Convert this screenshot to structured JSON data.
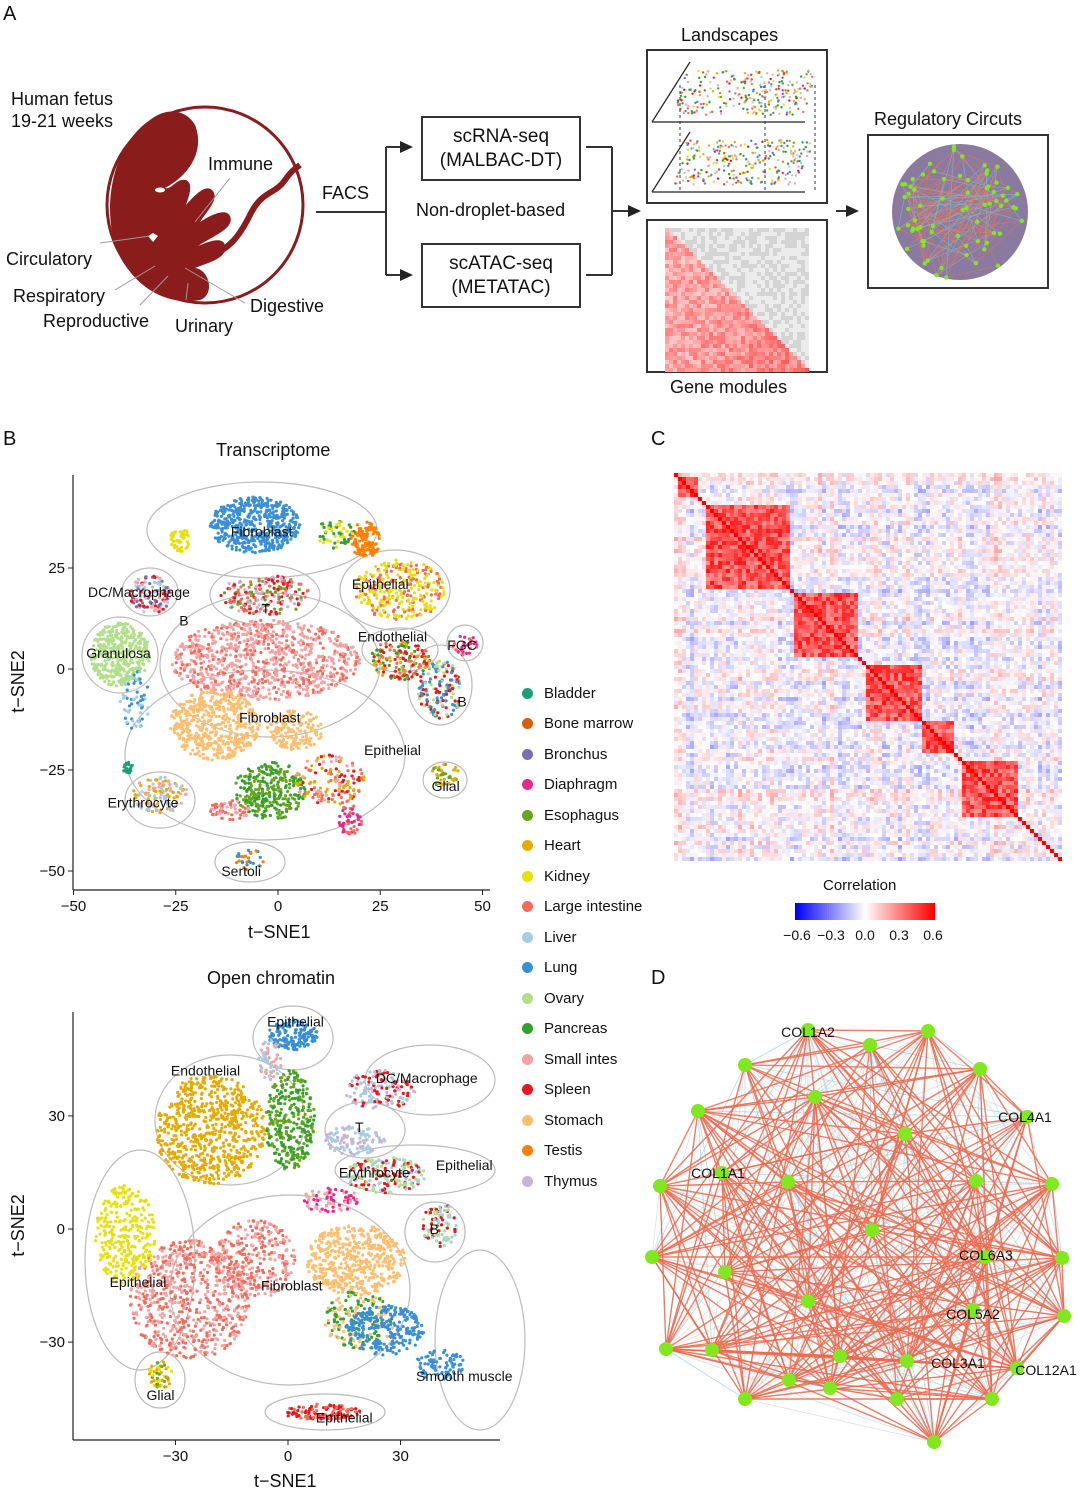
{
  "panel_a": {
    "label": "A",
    "fetus_title_line1": "Human fetus",
    "fetus_title_line2": "19-21 weeks",
    "organs": [
      "Immune",
      "Circulatory",
      "Respiratory",
      "Reproductive",
      "Urinary",
      "Digestive"
    ],
    "facs": "FACS",
    "method_note": "Non-droplet-based",
    "scrna_line1": "scRNA-seq",
    "scrna_line2": "(MALBAC-DT)",
    "scatac_line1": "scATAC-seq",
    "scatac_line2": "(METATAC)",
    "landscapes": "Landscapes",
    "gene_modules": "Gene modules",
    "regulatory": "Regulatory Circuts",
    "fetus_color": "#8b1c1c"
  },
  "panel_b": {
    "label": "B"
  },
  "panel_c": {
    "label": "C"
  },
  "panel_d": {
    "label": "D"
  },
  "legend": [
    {
      "name": "Bladder",
      "color": "#1b9e77"
    },
    {
      "name": "Bone marrow",
      "color": "#d95f02"
    },
    {
      "name": "Bronchus",
      "color": "#7570b3"
    },
    {
      "name": "Diaphragm",
      "color": "#e7298a"
    },
    {
      "name": "Esophagus",
      "color": "#66a61e"
    },
    {
      "name": "Heart",
      "color": "#e6ab02"
    },
    {
      "name": "Kidney",
      "color": "#e8e00c"
    },
    {
      "name": "Large intestine",
      "color": "#f26b5b"
    },
    {
      "name": "Liver",
      "color": "#a6cee3"
    },
    {
      "name": "Lung",
      "color": "#3a8fd6"
    },
    {
      "name": "Ovary",
      "color": "#b2df8a"
    },
    {
      "name": "Pancreas",
      "color": "#33a02c"
    },
    {
      "name": "Small intes",
      "color": "#f4a3a3"
    },
    {
      "name": "Spleen",
      "color": "#e31a1c"
    },
    {
      "name": "Stomach",
      "color": "#fdbf6f"
    },
    {
      "name": "Testis",
      "color": "#ff7f00"
    },
    {
      "name": "Thymus",
      "color": "#cab2d6"
    }
  ],
  "chart_data": [
    {
      "type": "scatter",
      "title": "Transcriptome",
      "xlabel": "t−SNE1",
      "ylabel": "t−SNE2",
      "xlim": [
        -50,
        50
      ],
      "ylim": [
        -50,
        50
      ],
      "xticks": [
        "−50",
        "−25",
        "0",
        "25",
        "50"
      ],
      "yticks": [
        "25",
        "0",
        "−25",
        "−50"
      ],
      "grid": false,
      "legend": "right",
      "annotations": [
        {
          "label": "Fibroblast",
          "x": -4,
          "y": 34
        },
        {
          "label": "DC/Macrophage",
          "x": -34,
          "y": 19
        },
        {
          "label": "T",
          "x": -3,
          "y": 15
        },
        {
          "label": "B",
          "x": -23,
          "y": 12
        },
        {
          "label": "Epithelial",
          "x": 25,
          "y": 21
        },
        {
          "label": "Endothelial",
          "x": 28,
          "y": 8
        },
        {
          "label": "FGC",
          "x": 45,
          "y": 6
        },
        {
          "label": "Granulosa",
          "x": -39,
          "y": 4
        },
        {
          "label": "B",
          "x": 45,
          "y": -8
        },
        {
          "label": "Fibroblast",
          "x": -2,
          "y": -12
        },
        {
          "label": "Epithelial",
          "x": 28,
          "y": -20
        },
        {
          "label": "Glial",
          "x": 41,
          "y": -29
        },
        {
          "label": "Erythrocyte",
          "x": -33,
          "y": -33
        },
        {
          "label": "Sertoli",
          "x": -9,
          "y": -50
        }
      ]
    },
    {
      "type": "scatter",
      "title": "Open chromatin",
      "xlabel": "t−SNE1",
      "ylabel": "t−SNE2",
      "xlim": [
        -55,
        57
      ],
      "ylim": [
        -56,
        58
      ],
      "xticks": [
        "−30",
        "0",
        "30"
      ],
      "yticks": [
        "30",
        "0",
        "−30"
      ],
      "grid": false,
      "annotations": [
        {
          "label": "Epithelial",
          "x": 2,
          "y": 55
        },
        {
          "label": "Endothelial",
          "x": -22,
          "y": 42
        },
        {
          "label": "DC/Macrophage",
          "x": 37,
          "y": 40
        },
        {
          "label": "T",
          "x": 19,
          "y": 27
        },
        {
          "label": "Erythrocyte",
          "x": 23,
          "y": 15
        },
        {
          "label": "Epithelial",
          "x": 47,
          "y": 17
        },
        {
          "label": "B",
          "x": 39,
          "y": 0
        },
        {
          "label": "Epithelial",
          "x": -40,
          "y": -14
        },
        {
          "label": "Fibroblast",
          "x": 1,
          "y": -15
        },
        {
          "label": "Smooth muscle",
          "x": 47,
          "y": -39
        },
        {
          "label": "Glial",
          "x": -34,
          "y": -44
        },
        {
          "label": "Epithelial",
          "x": 15,
          "y": -50
        }
      ]
    },
    {
      "type": "heatmap",
      "colorbar_title": "Correlation",
      "colorbar_ticks": [
        "−0.6",
        "−0.3",
        "0.0",
        "0.3",
        "0.6"
      ],
      "range": [
        -0.6,
        0.6
      ],
      "colors": {
        "low": "#0000ff",
        "mid": "#ffffff",
        "high": "#ff0000"
      }
    },
    {
      "type": "network",
      "node_color": "#7fe81f",
      "positive_edge_color": "#ee6a4f",
      "negative_edge_color": "#8fc8dc",
      "labeled_nodes": [
        "COL1A2",
        "COL4A1",
        "COL1A1",
        "COL6A3",
        "COL5A2",
        "COL3A1",
        "COL12A1"
      ]
    }
  ]
}
